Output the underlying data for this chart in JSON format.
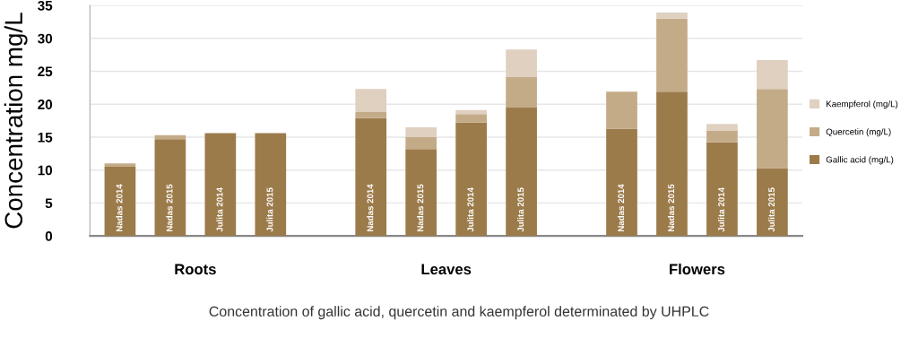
{
  "chart_data": {
    "type": "bar",
    "stacked": true,
    "categories": [
      "Nadas 2014",
      "Nadas 2015",
      "Julita 2014",
      "Julita 2015",
      null,
      "Nadas 2014",
      "Nadas 2015",
      "Julita 2014",
      "Julita 2015",
      null,
      "Nadas 2014",
      "Nadas 2015",
      "Julita 2014",
      "Julita 2015"
    ],
    "series": [
      {
        "name": "Gallic acid (mg/L)",
        "color": "#9c7b4b",
        "values": [
          10.5,
          14.7,
          15.6,
          15.6,
          null,
          17.9,
          13.2,
          17.2,
          19.5,
          null,
          16.3,
          21.9,
          14.2,
          10.3
        ]
      },
      {
        "name": "Quercetin (mg/L)",
        "color": "#c4ab88",
        "values": [
          0.5,
          0.6,
          null,
          null,
          null,
          0.9,
          1.8,
          1.3,
          4.6,
          null,
          5.6,
          11.1,
          1.8,
          12.0
        ]
      },
      {
        "name": "Kaempferol (mg/L)",
        "color": "#dfd0c0",
        "values": [
          null,
          null,
          null,
          null,
          null,
          3.5,
          1.5,
          0.6,
          4.2,
          null,
          null,
          0.9,
          1.0,
          4.4
        ]
      }
    ],
    "ylabel": "Concentration mg/L",
    "ylim": [
      0,
      35
    ],
    "yticks": [
      0,
      5,
      10,
      15,
      20,
      25,
      30,
      35
    ],
    "grid": "y",
    "legend": "right",
    "annotations": [
      "Roots",
      "Leaves",
      "Flowers",
      "Concentration of gallic acid, quercetin and kaempferol determinated by UHPLC"
    ]
  }
}
